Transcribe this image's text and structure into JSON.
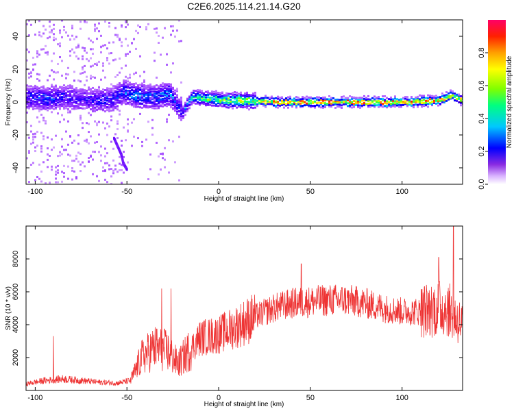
{
  "chart_data": [
    {
      "type": "heatmap",
      "title": "C2E6.2025.114.21.14.G20",
      "xlabel": "Height of straight line (km)",
      "ylabel": "Frequency (Hz)",
      "xlim": [
        -105,
        133
      ],
      "ylim": [
        -50,
        50
      ],
      "xticks": [
        -100,
        -50,
        0,
        50,
        100
      ],
      "yticks": [
        -40,
        -20,
        0,
        20,
        40
      ],
      "colorbar": {
        "label": "Normalized spectral amplitude",
        "range": [
          0,
          1
        ],
        "ticks": [
          0.0,
          0.2,
          0.4,
          0.6,
          0.8
        ]
      },
      "colormap": [
        "#e6ccff",
        "#a040ff",
        "#5a00ff",
        "#0000ff",
        "#00c8ff",
        "#00ff80",
        "#80ff00",
        "#ffff00",
        "#ffa000",
        "#ff2000",
        "#ff0066"
      ],
      "ridge": {
        "height_km": [
          -104,
          -95,
          -85,
          -75,
          -65,
          -58,
          -52,
          -45,
          -35,
          -27,
          -23,
          -20,
          -15,
          -5,
          5,
          15,
          30,
          60,
          100,
          120,
          127,
          132
        ],
        "frequency_hz": [
          3,
          2,
          3,
          2,
          1,
          2,
          6,
          4,
          3,
          5,
          -2,
          -6,
          3,
          2,
          1,
          1,
          0,
          0,
          0,
          1,
          4,
          1
        ],
        "amplitude": [
          0.3,
          0.35,
          0.3,
          0.25,
          0.3,
          0.3,
          0.35,
          0.4,
          0.35,
          0.4,
          0.3,
          0.3,
          0.5,
          0.6,
          0.65,
          0.7,
          0.9,
          0.92,
          0.92,
          0.9,
          0.75,
          0.8
        ]
      },
      "streak": {
        "height_km": [
          -57,
          -55,
          -53,
          -52,
          -50
        ],
        "frequency_hz": [
          -22,
          -27,
          -32,
          -37,
          -41
        ]
      }
    },
    {
      "type": "line",
      "xlabel": "Height of straight line (km)",
      "ylabel": "SNR (10 * v/v)",
      "xlim": [
        -105,
        133
      ],
      "ylim": [
        0,
        10000
      ],
      "xticks": [
        -100,
        -50,
        0,
        50,
        100
      ],
      "yticks": [
        2000,
        4000,
        6000,
        8000
      ],
      "line_color": "#ee3333",
      "trend": {
        "x": [
          -105,
          -95,
          -85,
          -75,
          -65,
          -55,
          -48,
          -42,
          -35,
          -28,
          -22,
          -18,
          -10,
          0,
          10,
          20,
          30,
          40,
          50,
          60,
          70,
          80,
          90,
          100,
          110,
          120,
          125,
          128,
          133
        ],
        "y": [
          400,
          600,
          700,
          600,
          500,
          450,
          600,
          2000,
          2600,
          2400,
          1600,
          2200,
          3200,
          3400,
          3900,
          4500,
          5000,
          5300,
          5400,
          5500,
          5500,
          5300,
          5000,
          4800,
          4800,
          5000,
          5000,
          4500,
          4000
        ]
      },
      "peaks": [
        {
          "x": -90,
          "y": 3300
        },
        {
          "x": -31,
          "y": 6200
        },
        {
          "x": -26,
          "y": 6200
        },
        {
          "x": 45,
          "y": 7700
        },
        {
          "x": 120,
          "y": 8100
        },
        {
          "x": 128,
          "y": 10000
        }
      ]
    }
  ]
}
